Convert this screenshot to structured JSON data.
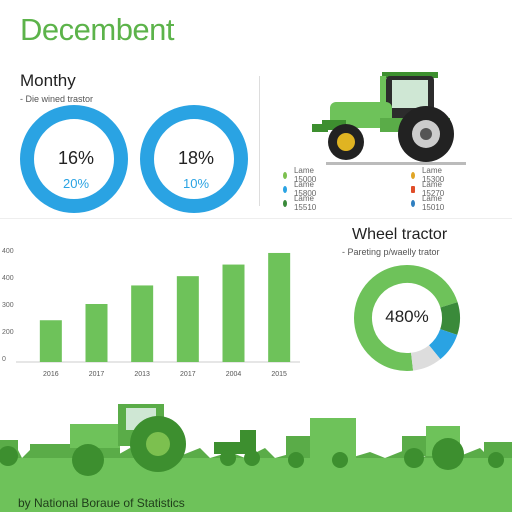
{
  "header": {
    "title": "Decembent"
  },
  "monthly": {
    "title": "Monthy",
    "subtitle": "- Die wined trastor",
    "rings": [
      {
        "value_label": "16%",
        "sub_label": "20%"
      },
      {
        "value_label": "18%",
        "sub_label": "10%"
      }
    ]
  },
  "legend": {
    "items": [
      {
        "label": "Lame 15000",
        "color": "#7cc04f"
      },
      {
        "label": "Lame 15800",
        "color": "#2aa3e3"
      },
      {
        "label": "Lame 15510",
        "color": "#3a8a3a"
      },
      {
        "label": "Lame 15300",
        "color": "#e0a526"
      },
      {
        "label": "Lame 15270",
        "color": "#e04e2a"
      },
      {
        "label": "Lame 15010",
        "color": "#2f7fc0"
      }
    ]
  },
  "wheel": {
    "title": "Wheel tractor",
    "subtitle": "- Pareting p/waelly trator",
    "pie_label": "480%"
  },
  "footer": {
    "text": "by National Boraue of Statistics"
  },
  "chart_data": [
    {
      "type": "bar",
      "categories": [
        "2016",
        "2017",
        "2013",
        "2017",
        "2004",
        "2015"
      ],
      "values": [
        180,
        250,
        330,
        370,
        420,
        470
      ],
      "ytick_labels": [
        "400",
        "400",
        "300",
        "200",
        "0"
      ],
      "ylim": [
        0,
        500
      ],
      "title": "",
      "xlabel": "",
      "ylabel": ""
    },
    {
      "type": "pie",
      "title": "Wheel tractor",
      "labels": [
        "480%"
      ],
      "slices": [
        {
          "value": 72,
          "color": "#6ec25a"
        },
        {
          "value": 10,
          "color": "#3a8a3a"
        },
        {
          "value": 9,
          "color": "#2aa3e3"
        },
        {
          "value": 9,
          "color": "#dddddd"
        }
      ]
    },
    {
      "type": "pie",
      "title": "Monthy",
      "rings": [
        {
          "label": "16%",
          "fraction": 0.95,
          "color": "#2aa3e3"
        },
        {
          "label": "18%",
          "fraction": 0.95,
          "color": "#2aa3e3"
        }
      ]
    }
  ]
}
